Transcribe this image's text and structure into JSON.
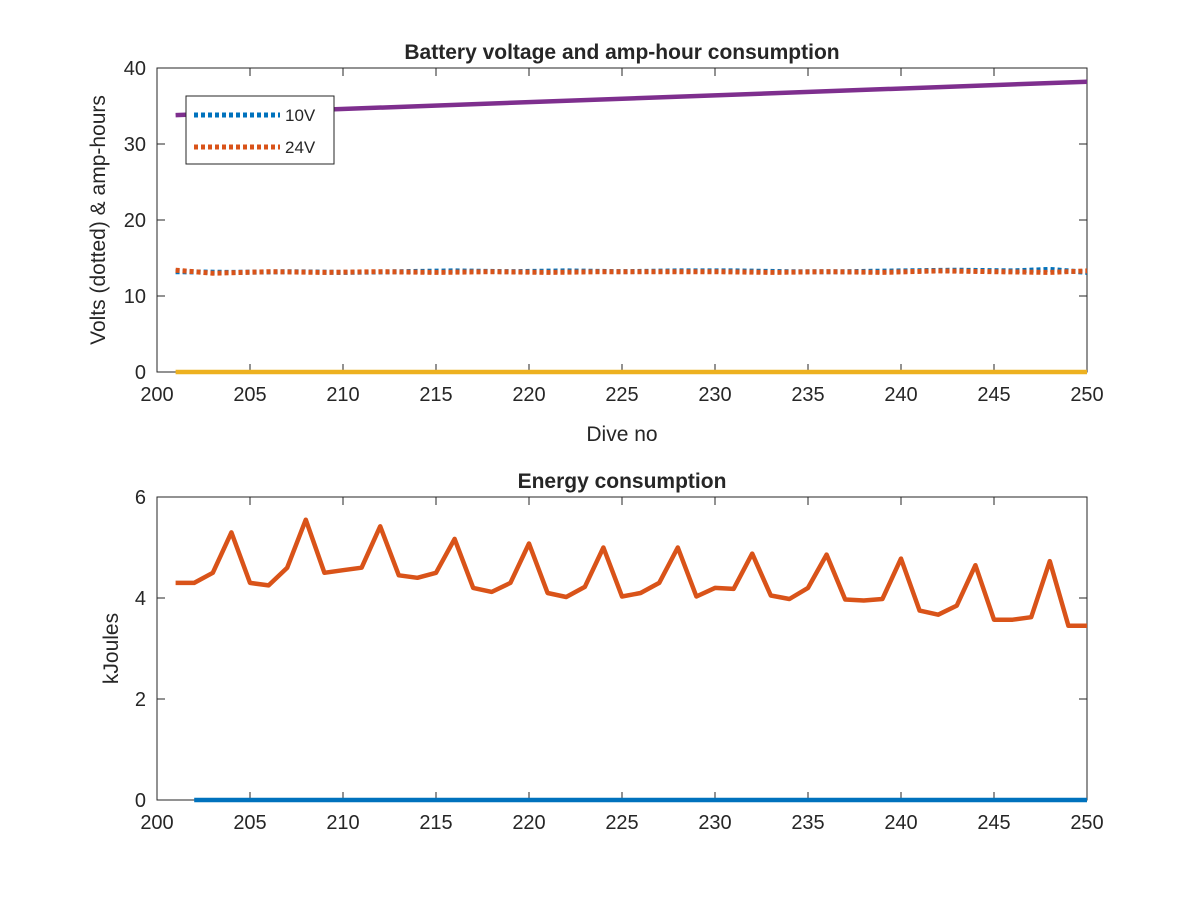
{
  "chart_data": [
    {
      "type": "line",
      "title": "Battery voltage and amp-hour consumption",
      "xlabel": "Dive no",
      "ylabel": "Volts (dotted) & amp-hours",
      "xlim": [
        200,
        250
      ],
      "ylim": [
        0,
        40
      ],
      "xticks": [
        "200",
        "205",
        "210",
        "215",
        "220",
        "225",
        "230",
        "235",
        "240",
        "245",
        "250"
      ],
      "yticks": [
        "0",
        "10",
        "20",
        "30",
        "40"
      ],
      "grid": false,
      "legend_placement": "top-left",
      "series": [
        {
          "name": "10V",
          "style": "dotted",
          "color": "#0072BD",
          "x": [
            201,
            204,
            207,
            210,
            213,
            216,
            219,
            222,
            225,
            228,
            231,
            234,
            237,
            240,
            243,
            246,
            248,
            250
          ],
          "y": [
            13.2,
            13.1,
            13.2,
            13.1,
            13.2,
            13.3,
            13.2,
            13.3,
            13.2,
            13.3,
            13.3,
            13.2,
            13.2,
            13.3,
            13.4,
            13.3,
            13.5,
            13.1
          ]
        },
        {
          "name": "24V",
          "style": "dotted",
          "color": "#D95319",
          "x": [
            201,
            203,
            206,
            209,
            212,
            215,
            218,
            221,
            224,
            227,
            230,
            233,
            236,
            239,
            242,
            245,
            248,
            250
          ],
          "y": [
            13.4,
            13.0,
            13.2,
            13.1,
            13.2,
            13.1,
            13.2,
            13.1,
            13.2,
            13.2,
            13.2,
            13.1,
            13.2,
            13.1,
            13.3,
            13.2,
            13.1,
            13.3
          ]
        },
        {
          "style": "solid",
          "color": "#7E2F8E",
          "x": [
            201,
            250
          ],
          "y": [
            33.8,
            38.2
          ]
        },
        {
          "style": "solid",
          "color": "#EDB120",
          "x": [
            201,
            250
          ],
          "y": [
            0,
            0
          ]
        }
      ]
    },
    {
      "type": "line",
      "title": "Energy consumption",
      "xlabel": "",
      "ylabel": "kJoules",
      "xlim": [
        200,
        250
      ],
      "ylim": [
        0,
        6
      ],
      "xticks": [
        "200",
        "205",
        "210",
        "215",
        "220",
        "225",
        "230",
        "235",
        "240",
        "245",
        "250"
      ],
      "yticks": [
        "0",
        "2",
        "4",
        "6"
      ],
      "grid": false,
      "series": [
        {
          "style": "solid",
          "color": "#0072BD",
          "x": [
            202,
            250
          ],
          "y": [
            0,
            0
          ]
        },
        {
          "style": "solid",
          "color": "#D95319",
          "x": [
            201,
            202,
            203,
            204,
            205,
            206,
            207,
            208,
            209,
            210,
            211,
            212,
            213,
            214,
            215,
            216,
            217,
            218,
            219,
            220,
            221,
            222,
            223,
            224,
            225,
            226,
            227,
            228,
            229,
            230,
            231,
            232,
            233,
            234,
            235,
            236,
            237,
            238,
            239,
            240,
            241,
            242,
            243,
            244,
            245,
            246,
            247,
            248,
            249,
            250
          ],
          "y": [
            4.3,
            4.3,
            4.5,
            5.3,
            4.3,
            4.25,
            4.6,
            5.55,
            4.5,
            4.55,
            4.6,
            5.42,
            4.45,
            4.4,
            4.5,
            5.17,
            4.2,
            4.12,
            4.3,
            5.08,
            4.1,
            4.02,
            4.22,
            5.0,
            4.03,
            4.1,
            4.3,
            5.0,
            4.03,
            4.2,
            4.18,
            4.88,
            4.05,
            3.98,
            4.2,
            4.86,
            3.97,
            3.95,
            3.98,
            4.78,
            3.75,
            3.67,
            3.85,
            4.65,
            3.57,
            3.57,
            3.62,
            4.73,
            3.45,
            3.45
          ]
        }
      ]
    }
  ]
}
